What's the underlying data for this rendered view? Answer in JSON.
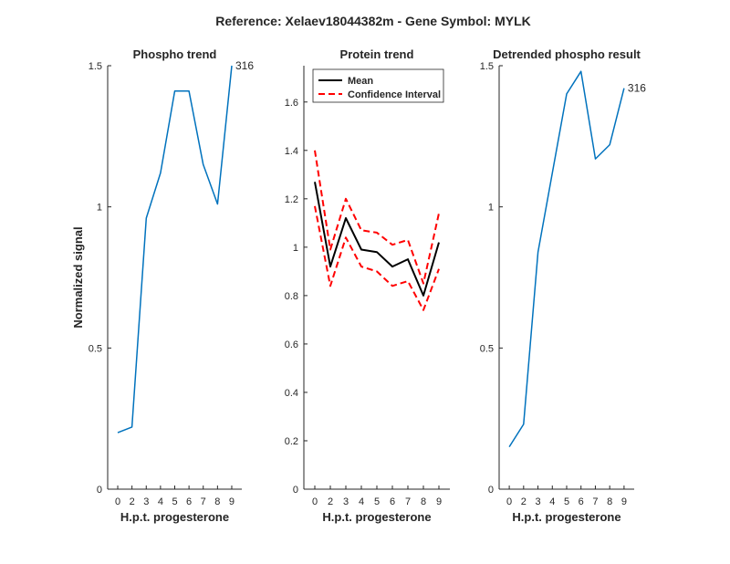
{
  "suptitle": "Reference:  Xelaev18044382m - Gene Symbol:  MYLK",
  "chart_data": [
    {
      "type": "line",
      "title": "Phospho trend",
      "xlabel": "H.p.t. progesterone",
      "ylabel": "Normalized signal",
      "categories": [
        "0",
        "2",
        "3",
        "4",
        "5",
        "6",
        "7",
        "8",
        "9"
      ],
      "ylim": [
        0,
        1.5
      ],
      "yticks": [
        "0",
        "0.5",
        "1",
        "1.5"
      ],
      "series": [
        {
          "values": [
            0.2,
            0.22,
            0.96,
            1.12,
            1.41,
            1.41,
            1.15,
            1.01,
            1.5
          ],
          "color": "#0072BD"
        }
      ],
      "annotation": "316"
    },
    {
      "type": "line",
      "title": "Protein trend",
      "xlabel": "H.p.t. progesterone",
      "categories": [
        "0",
        "2",
        "3",
        "4",
        "5",
        "6",
        "7",
        "8",
        "9"
      ],
      "ylim": [
        0,
        1.75
      ],
      "yticks": [
        "0",
        "0.2",
        "0.4",
        "0.6",
        "0.8",
        "1",
        "1.2",
        "1.4",
        "1.6"
      ],
      "legend": "top-left",
      "series": [
        {
          "name": "Mean",
          "values": [
            1.27,
            0.92,
            1.12,
            0.99,
            0.98,
            0.92,
            0.95,
            0.8,
            1.02
          ],
          "color": "#000000",
          "style": "solid"
        },
        {
          "name": "Confidence Interval",
          "values": [
            1.4,
            0.99,
            1.2,
            1.07,
            1.06,
            1.01,
            1.03,
            0.85,
            1.14
          ],
          "color": "#FF0000",
          "style": "dashed"
        },
        {
          "values": [
            1.17,
            0.84,
            1.04,
            0.92,
            0.9,
            0.84,
            0.86,
            0.74,
            0.91
          ],
          "color": "#FF0000",
          "style": "dashed"
        }
      ]
    },
    {
      "type": "line",
      "title": "Detrended phospho result",
      "xlabel": "H.p.t. progesterone",
      "categories": [
        "0",
        "2",
        "3",
        "4",
        "5",
        "6",
        "7",
        "8",
        "9"
      ],
      "ylim": [
        0,
        1.5
      ],
      "yticks": [
        "0",
        "0.5",
        "1",
        "1.5"
      ],
      "series": [
        {
          "values": [
            0.15,
            0.23,
            0.84,
            1.12,
            1.4,
            1.48,
            1.17,
            1.22,
            1.42
          ],
          "color": "#0072BD"
        }
      ],
      "annotation": "316"
    }
  ]
}
